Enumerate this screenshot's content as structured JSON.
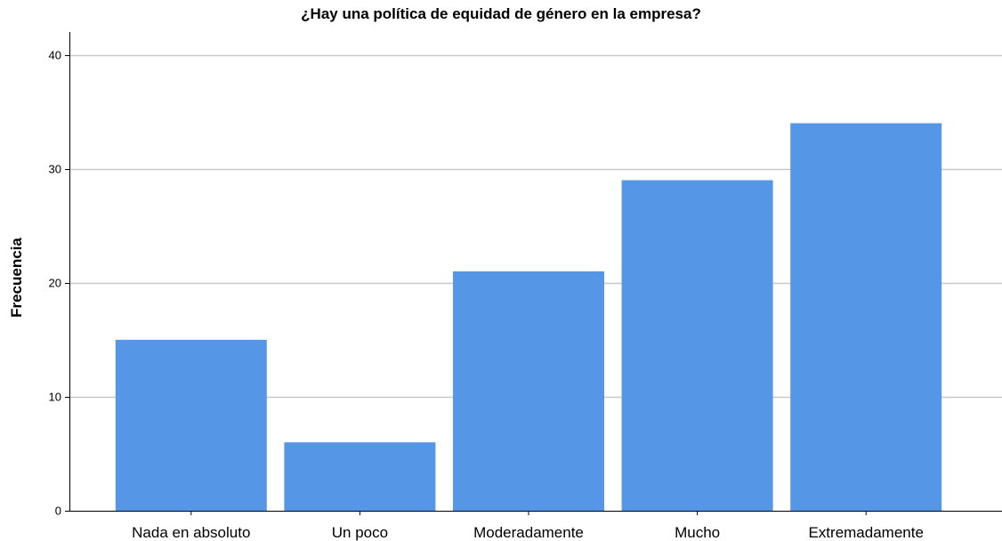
{
  "chart_data": {
    "type": "bar",
    "title": "¿Hay una política de equidad de género en la empresa?",
    "xlabel": "",
    "ylabel": "Frecuencia",
    "categories": [
      "Nada en absoluto",
      "Un poco",
      "Moderadamente",
      "Mucho",
      "Extremadamente"
    ],
    "values": [
      15,
      6,
      21,
      29,
      34
    ],
    "ylim": [
      0,
      42
    ],
    "yticks": [
      0,
      10,
      20,
      30,
      40
    ],
    "grid": true,
    "bar_color": "#5596e6",
    "grid_color": "#c8c8c8"
  }
}
